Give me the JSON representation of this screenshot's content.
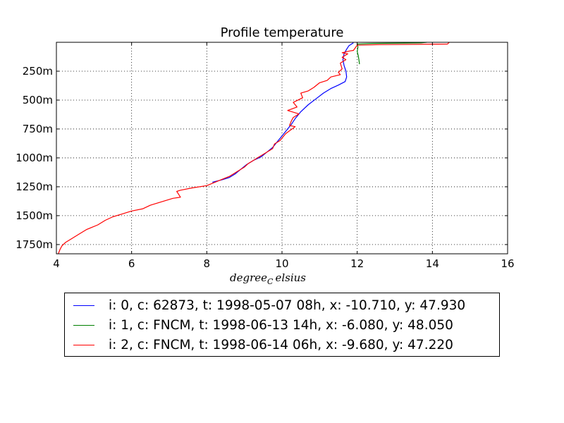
{
  "chart_data": {
    "type": "line",
    "title": "Profile temperature",
    "xlabel": "degree_C elsius",
    "xlabel_display": "degree",
    "xlabel_sub": "C",
    "xlabel_rest": "elsius",
    "ylabel": "",
    "xlim": [
      4,
      16
    ],
    "ylim": [
      1830,
      0
    ],
    "x_ticks": [
      4,
      6,
      8,
      10,
      12,
      14,
      16
    ],
    "y_ticks": [
      250,
      500,
      750,
      1000,
      1250,
      1500,
      1750
    ],
    "y_tick_labels": [
      "250m",
      "500m",
      "750m",
      "1000m",
      "1250m",
      "1500m",
      "1750m"
    ],
    "grid": true,
    "legend_position": "below",
    "series": [
      {
        "name": "i: 0, c: 62873, t: 1998-05-07 08h, x: -10.710, y: 47.930",
        "color": "#0000ff",
        "points": [
          [
            11.9,
            5
          ],
          [
            11.78,
            30
          ],
          [
            11.72,
            60
          ],
          [
            11.65,
            100
          ],
          [
            11.62,
            150
          ],
          [
            11.65,
            200
          ],
          [
            11.7,
            250
          ],
          [
            11.72,
            300
          ],
          [
            11.68,
            340
          ],
          [
            11.5,
            370
          ],
          [
            11.3,
            400
          ],
          [
            11.1,
            440
          ],
          [
            10.9,
            490
          ],
          [
            10.7,
            540
          ],
          [
            10.5,
            600
          ],
          [
            10.35,
            660
          ],
          [
            10.25,
            710
          ],
          [
            10.1,
            770
          ],
          [
            9.95,
            830
          ],
          [
            9.85,
            870
          ],
          [
            9.75,
            910
          ],
          [
            9.6,
            950
          ],
          [
            9.45,
            990
          ],
          [
            9.25,
            1020
          ],
          [
            9.05,
            1060
          ],
          [
            8.9,
            1100
          ],
          [
            8.75,
            1140
          ],
          [
            8.6,
            1170
          ],
          [
            8.4,
            1190
          ],
          [
            8.15,
            1210
          ]
        ]
      },
      {
        "name": "i: 1, c: FNCM, t: 1998-06-13 14h, x: -6.080, y: 48.050",
        "color": "#008000",
        "points": [
          [
            13.85,
            0
          ],
          [
            13.7,
            5
          ],
          [
            12.4,
            10
          ],
          [
            12.0,
            15
          ],
          [
            12.02,
            40
          ],
          [
            12.0,
            80
          ],
          [
            12.03,
            120
          ],
          [
            12.05,
            160
          ],
          [
            12.06,
            190
          ]
        ]
      },
      {
        "name": "i: 2, c: FNCM, t: 1998-06-14 06h, x: -9.680, y: 47.220",
        "color": "#ff0000",
        "points": [
          [
            14.45,
            0
          ],
          [
            14.4,
            15
          ],
          [
            12.6,
            20
          ],
          [
            12.0,
            25
          ],
          [
            11.9,
            70
          ],
          [
            11.8,
            75
          ],
          [
            11.6,
            90
          ],
          [
            11.75,
            100
          ],
          [
            11.6,
            130
          ],
          [
            11.7,
            150
          ],
          [
            11.55,
            180
          ],
          [
            11.6,
            230
          ],
          [
            11.5,
            260
          ],
          [
            11.55,
            280
          ],
          [
            11.3,
            300
          ],
          [
            11.2,
            330
          ],
          [
            11.0,
            350
          ],
          [
            10.85,
            390
          ],
          [
            10.7,
            420
          ],
          [
            10.5,
            440
          ],
          [
            10.55,
            480
          ],
          [
            10.3,
            520
          ],
          [
            10.4,
            560
          ],
          [
            10.15,
            590
          ],
          [
            10.45,
            620
          ],
          [
            10.3,
            650
          ],
          [
            10.25,
            680
          ],
          [
            10.2,
            720
          ],
          [
            10.35,
            730
          ],
          [
            10.1,
            790
          ],
          [
            9.95,
            850
          ],
          [
            9.8,
            880
          ],
          [
            9.75,
            920
          ],
          [
            9.55,
            960
          ],
          [
            9.35,
            1000
          ],
          [
            9.1,
            1050
          ],
          [
            9.0,
            1080
          ],
          [
            8.8,
            1120
          ],
          [
            8.6,
            1160
          ],
          [
            8.3,
            1200
          ],
          [
            8.0,
            1240
          ],
          [
            7.6,
            1260
          ],
          [
            7.3,
            1280
          ],
          [
            7.2,
            1290
          ],
          [
            7.3,
            1340
          ],
          [
            7.1,
            1350
          ],
          [
            6.8,
            1380
          ],
          [
            6.5,
            1410
          ],
          [
            6.3,
            1440
          ],
          [
            6.0,
            1460
          ],
          [
            5.7,
            1490
          ],
          [
            5.5,
            1510
          ],
          [
            5.3,
            1540
          ],
          [
            5.1,
            1580
          ],
          [
            4.8,
            1620
          ],
          [
            4.6,
            1660
          ],
          [
            4.4,
            1700
          ],
          [
            4.25,
            1730
          ],
          [
            4.15,
            1760
          ],
          [
            4.1,
            1790
          ],
          [
            4.05,
            1830
          ]
        ]
      }
    ]
  }
}
